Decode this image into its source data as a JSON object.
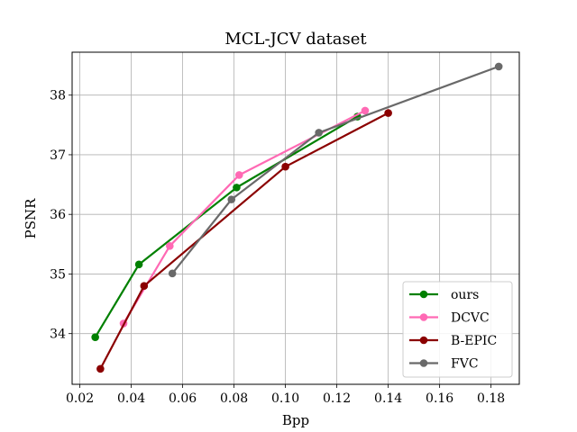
{
  "chart_data": {
    "type": "line",
    "title": "MCL-JCV dataset",
    "xlabel": "Bpp",
    "ylabel": "PSNR",
    "xlim": [
      0.017,
      0.191
    ],
    "ylim": [
      33.15,
      38.72
    ],
    "xticks": [
      0.02,
      0.04,
      0.06,
      0.08,
      0.1,
      0.12,
      0.14,
      0.16,
      0.18
    ],
    "xtick_labels": [
      "0.02",
      "0.04",
      "0.06",
      "0.08",
      "0.10",
      "0.12",
      "0.14",
      "0.16",
      "0.18"
    ],
    "yticks": [
      34,
      35,
      36,
      37,
      38
    ],
    "ytick_labels": [
      "34",
      "35",
      "36",
      "37",
      "38"
    ],
    "grid": true,
    "legend_position": "lower-right",
    "series": [
      {
        "name": "ours",
        "color": "#008000",
        "x": [
          0.026,
          0.043,
          0.081,
          0.128
        ],
        "y": [
          33.94,
          35.16,
          36.45,
          37.64
        ]
      },
      {
        "name": "DCVC",
        "color": "#ff69b4",
        "x": [
          0.037,
          0.055,
          0.082,
          0.131
        ],
        "y": [
          34.17,
          35.47,
          36.66,
          37.74
        ]
      },
      {
        "name": "B-EPIC",
        "color": "#8b0000",
        "x": [
          0.028,
          0.045,
          0.1,
          0.14
        ],
        "y": [
          33.41,
          34.8,
          36.8,
          37.7
        ]
      },
      {
        "name": "FVC",
        "color": "#696969",
        "x": [
          0.056,
          0.079,
          0.113,
          0.183
        ],
        "y": [
          35.01,
          36.25,
          37.37,
          38.48
        ]
      }
    ]
  }
}
